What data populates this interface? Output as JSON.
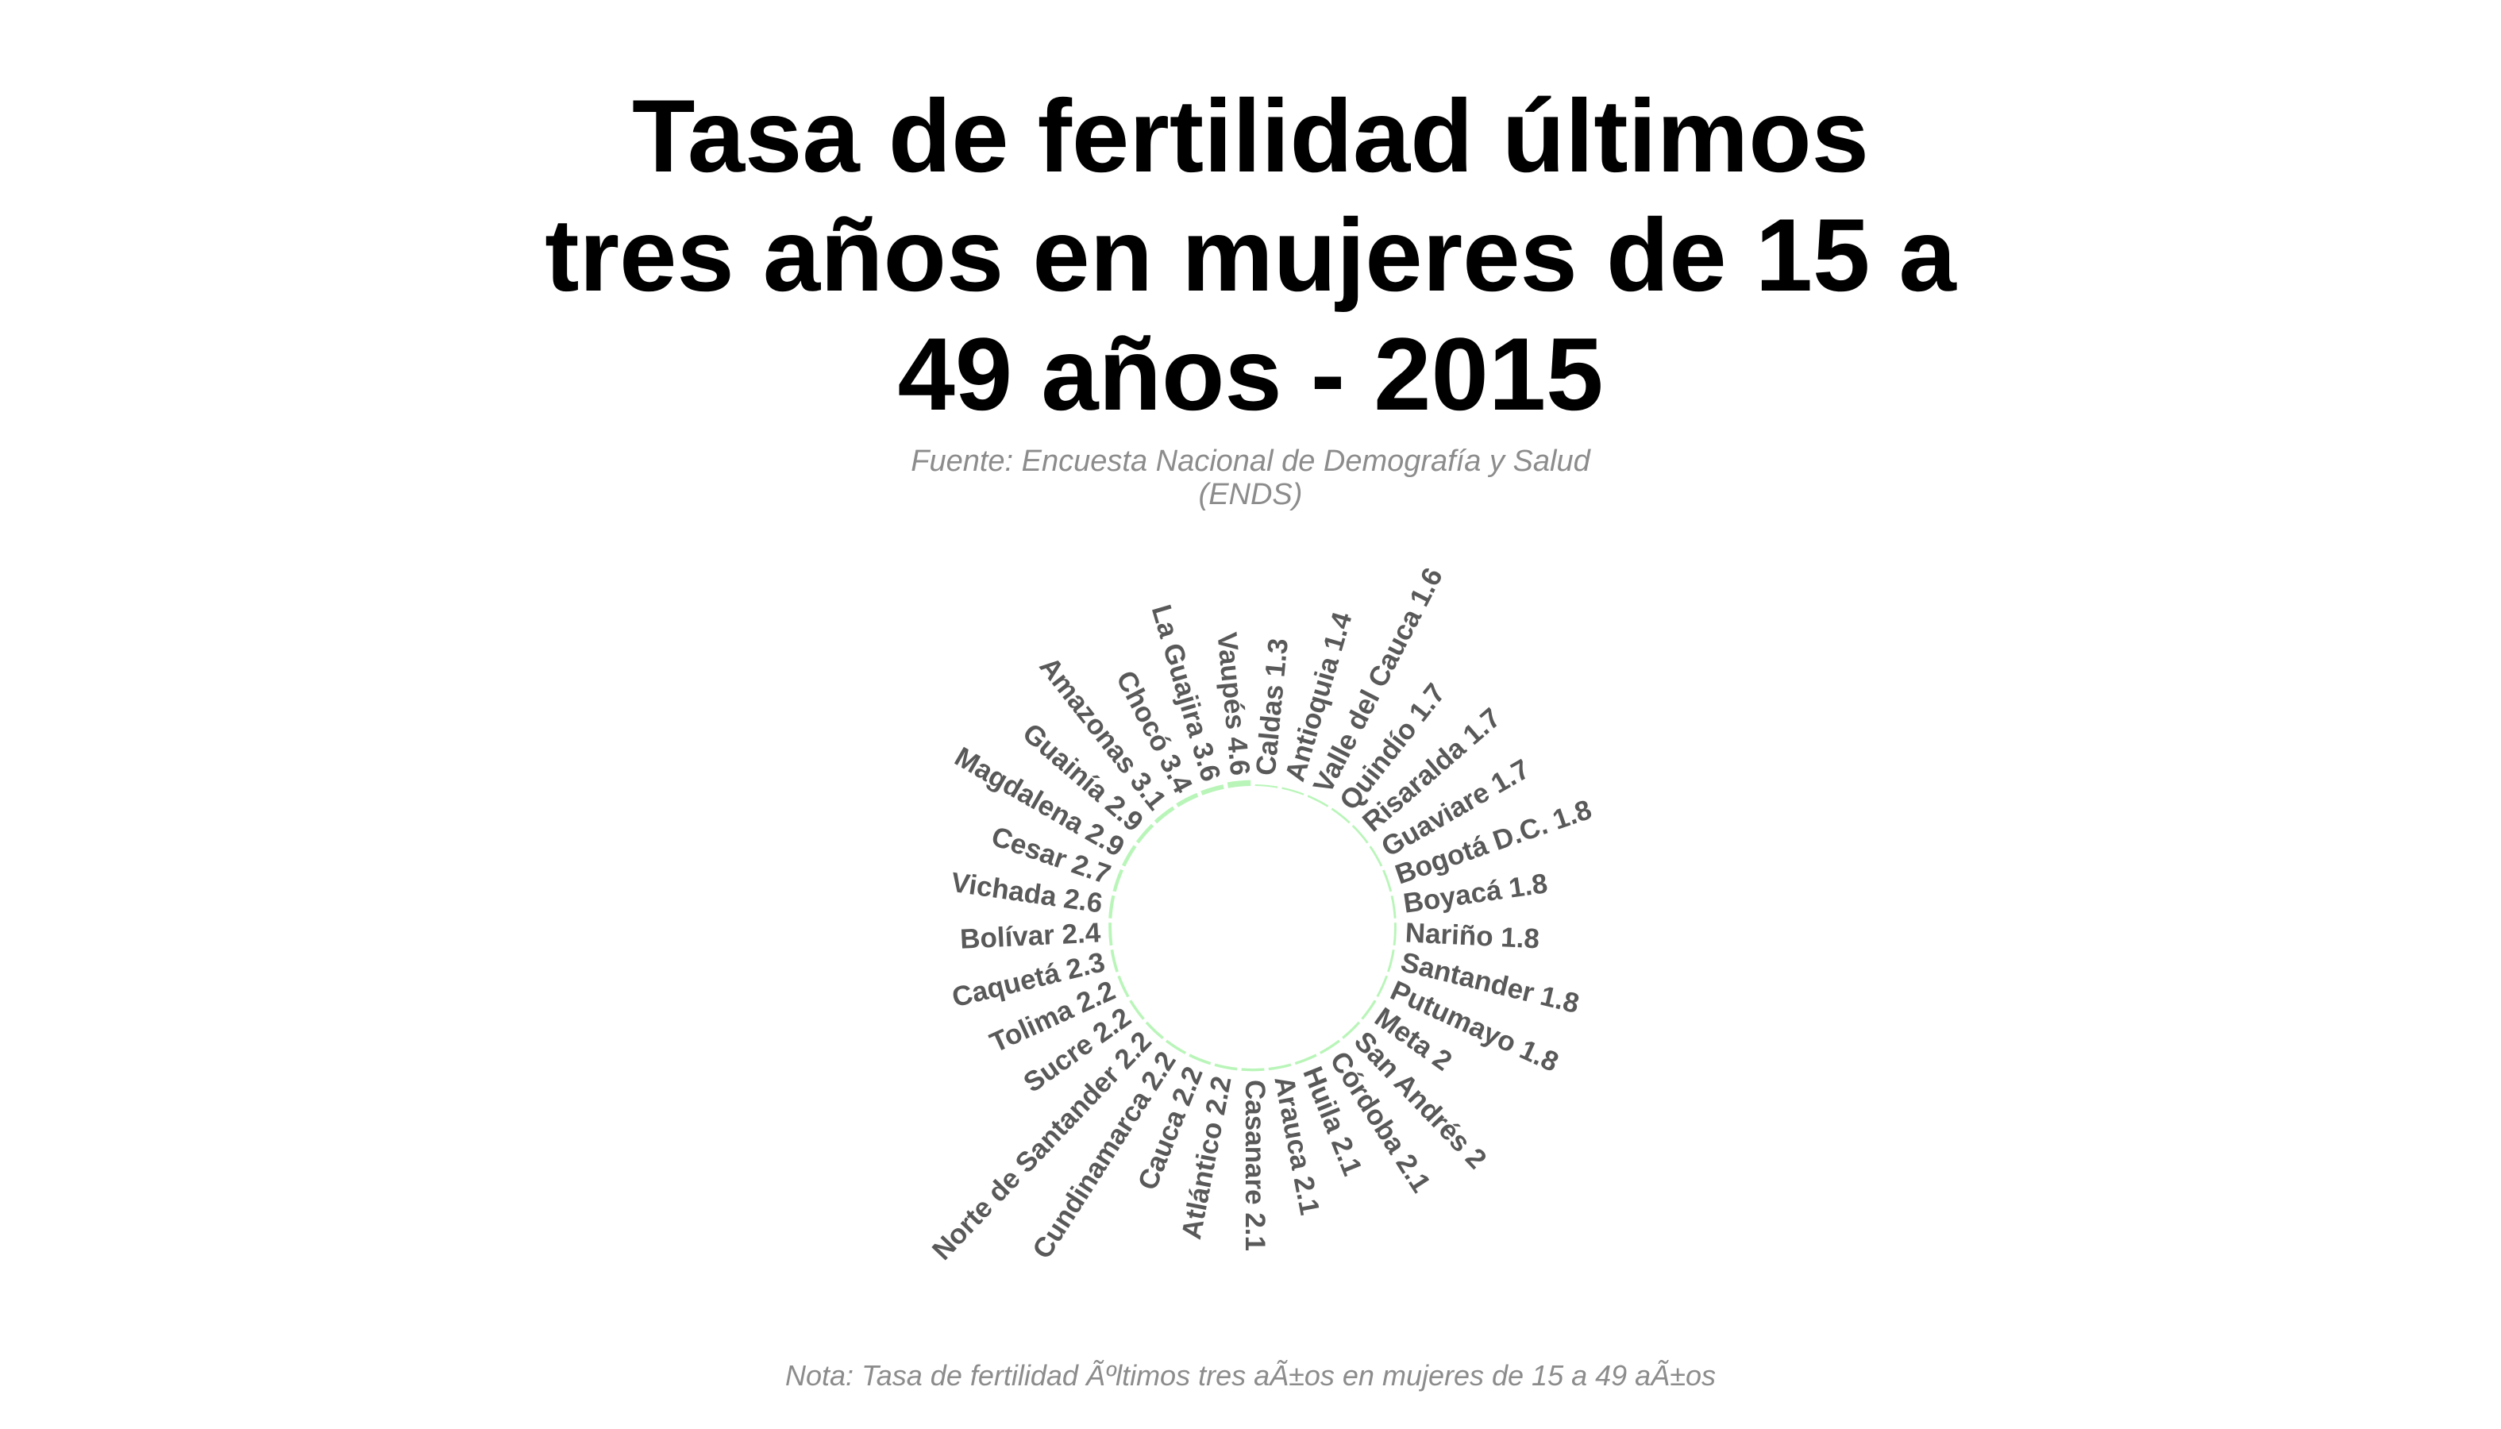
{
  "title_lines": [
    "Tasa de fertilidad últimos",
    "tres años en mujeres de 15 a",
    "49 años - 2015"
  ],
  "subtitle_lines": [
    "Fuente: Encuesta Nacional de Demografía y Salud",
    "(ENDS)"
  ],
  "note": "Nota: Tasa de fertilidad Ãºltimos tres aÃ±os en mujeres de 15 a 49 aÃ±os",
  "colors": {
    "bar": "#b9f5b9",
    "label": "#595959",
    "title": "#000000",
    "subtitle": "#8c8c8c"
  },
  "chart_data": {
    "type": "bar",
    "layout": "circular",
    "categories": [
      "Caldas",
      "Antioquia",
      "Valle del Cauca",
      "Quindío",
      "Risaralda",
      "Guaviare",
      "Bogotá D.C.",
      "Boyacá",
      "Nariño",
      "Santander",
      "Putumayo",
      "Meta",
      "San Andrés",
      "Córdoba",
      "Huila",
      "Arauca",
      "Casanare",
      "Atlántico",
      "Cauca",
      "Cundinamarca",
      "Norte de Santander",
      "Sucre",
      "Tolima",
      "Caquetá",
      "Bolívar",
      "Vichada",
      "Cesar",
      "Magdalena",
      "Guainía",
      "Amazonas",
      "Chocó",
      "La Guajira",
      "Vaupés"
    ],
    "values": [
      1.3,
      1.4,
      1.6,
      1.7,
      1.7,
      1.7,
      1.8,
      1.8,
      1.8,
      1.8,
      1.8,
      2,
      2,
      2.1,
      2.1,
      2.1,
      2.1,
      2.2,
      2.2,
      2.2,
      2.2,
      2.2,
      2.2,
      2.3,
      2.4,
      2.6,
      2.7,
      2.9,
      2.9,
      3.1,
      3.4,
      3.6,
      4.6
    ],
    "labels": [
      "Caldas 1.3",
      "Antioquia 1.4",
      "Valle del Cauca 1.6",
      "Quindío 1.7",
      "Risaralda 1.7",
      "Guaviare 1.7",
      "Bogotá D.C. 1.8",
      "Boyacá 1.8",
      "Nariño 1.8",
      "Santander 1.8",
      "Putumayo 1.8",
      "Meta 2",
      "San Andrés 2",
      "Córdoba 2.1",
      "Huila 2.1",
      "Arauca 2.1",
      "Casanare 2.1",
      "Atlántico 2.2",
      "Cauca 2.2",
      "Cundinamarca 2.2",
      "Norte de Santander 2.2",
      "Sucre 2.2",
      "Tolima 2.2",
      "Caquetá 2.3",
      "Bolívar 2.4",
      "Vichada 2.6",
      "Cesar 2.7",
      "Magdalena 2.9",
      "Guainía 2.9",
      "Amazonas 3.1",
      "Chocó 3.4",
      "La Guajira 3.6",
      "Vaupés 4.6"
    ],
    "title": "Tasa de fertilidad últimos tres años en mujeres de 15 a 49 años - 2015",
    "grid": false,
    "legend": "none"
  }
}
